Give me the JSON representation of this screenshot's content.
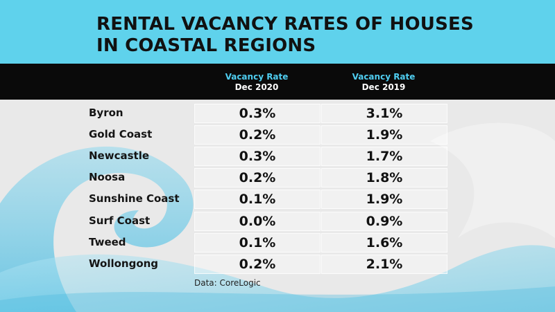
{
  "chart_data": {
    "type": "table",
    "title": "RENTAL VACANCY RATES OF HOUSES\nIN COASTAL REGIONS",
    "title_lines": [
      "RENTAL VACANCY RATES OF HOUSES",
      "IN COASTAL REGIONS"
    ],
    "columns": [
      {
        "line1": "Vacancy Rate",
        "line2": "Dec 2020"
      },
      {
        "line1": "Vacancy Rate",
        "line2": "Dec 2019"
      }
    ],
    "rows": [
      {
        "region": "Byron",
        "dec2020": "0.3%",
        "dec2019": "3.1%"
      },
      {
        "region": "Gold Coast",
        "dec2020": "0.2%",
        "dec2019": "1.9%"
      },
      {
        "region": "Newcastle",
        "dec2020": "0.3%",
        "dec2019": "1.7%"
      },
      {
        "region": "Noosa",
        "dec2020": "0.2%",
        "dec2019": "1.8%"
      },
      {
        "region": "Sunshine Coast",
        "dec2020": "0.1%",
        "dec2019": "1.9%"
      },
      {
        "region": "Surf Coast",
        "dec2020": "0.0%",
        "dec2019": "0.9%"
      },
      {
        "region": "Tweed",
        "dec2020": "0.1%",
        "dec2019": "1.6%"
      },
      {
        "region": "Wollongong",
        "dec2020": "0.2%",
        "dec2019": "2.1%"
      }
    ],
    "source": "Data: CoreLogic"
  },
  "colors": {
    "title_band": "#5fd2ec",
    "header_band": "#0a0a0a",
    "header_accent": "#4fcdf0",
    "background": "#e9e9e9",
    "wave": "#5cc6e6"
  }
}
